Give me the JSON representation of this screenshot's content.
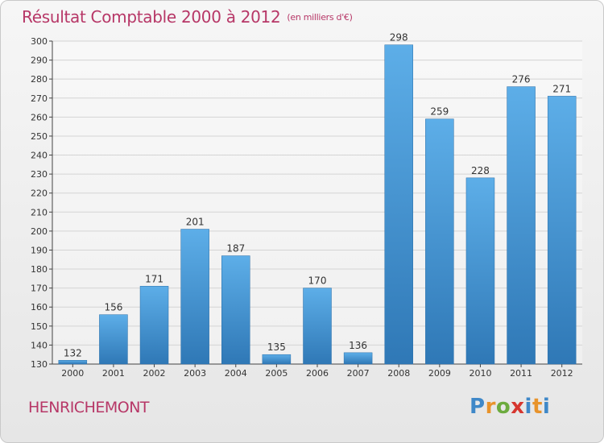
{
  "chart_data": {
    "type": "bar",
    "title": "Résultat Comptable 2000 à 2012",
    "subtitle": "(en milliers d'€)",
    "categories": [
      "2000",
      "2001",
      "2002",
      "2003",
      "2004",
      "2005",
      "2006",
      "2007",
      "2008",
      "2009",
      "2010",
      "2011",
      "2012"
    ],
    "values": [
      132,
      156,
      171,
      201,
      187,
      135,
      170,
      136,
      298,
      259,
      228,
      276,
      271
    ],
    "ylim": [
      130,
      300
    ],
    "ytick_step": 10,
    "grid": true,
    "bar_color_top": "#5daee8",
    "bar_color_bottom": "#2f78b6"
  },
  "footer": {
    "place": "HENRICHEMONT",
    "logo": [
      "P",
      "r",
      "o",
      "x",
      "i",
      "t",
      "i"
    ]
  }
}
